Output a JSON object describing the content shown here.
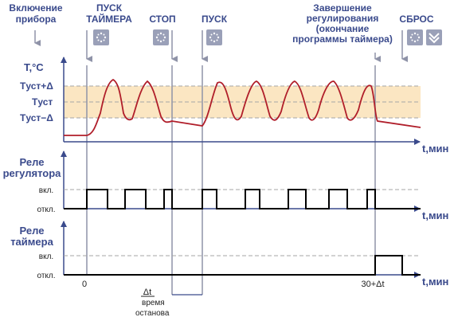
{
  "events": {
    "power_on": [
      "Включение",
      "прибора"
    ],
    "timer_start": [
      "ПУСК",
      "ТАЙМЕРА"
    ],
    "stop": "СТОП",
    "start": "ПУСК",
    "end_regulation": [
      "Завершение",
      "регулирования",
      "(окончание",
      "программы таймера)"
    ],
    "reset": "СБРОС"
  },
  "temperature_axis": {
    "title": "T,°C",
    "t_upper": "Tуст+Δ",
    "t_set": "Tуст",
    "t_lower": "Tуст−Δ"
  },
  "time_axis_label": "t,мин",
  "regulator_relay": {
    "title": [
      "Реле",
      "регулятора"
    ],
    "on": "вкл.",
    "off": "откл."
  },
  "timer_relay": {
    "title": [
      "Реле",
      "таймера"
    ],
    "on": "вкл.",
    "off": "откл."
  },
  "ticks": {
    "zero": "0",
    "end": "30+Δt",
    "delta": "Δt",
    "stop_time": [
      "время",
      "останова"
    ]
  },
  "colors": {
    "axis_blue": "#3a4a8c",
    "curve": "#b01e2a",
    "band": "#fbe6c2",
    "marker": "#8f93a8"
  },
  "icons": [
    "snowflake-button-icon",
    "chevron-down-icon"
  ]
}
